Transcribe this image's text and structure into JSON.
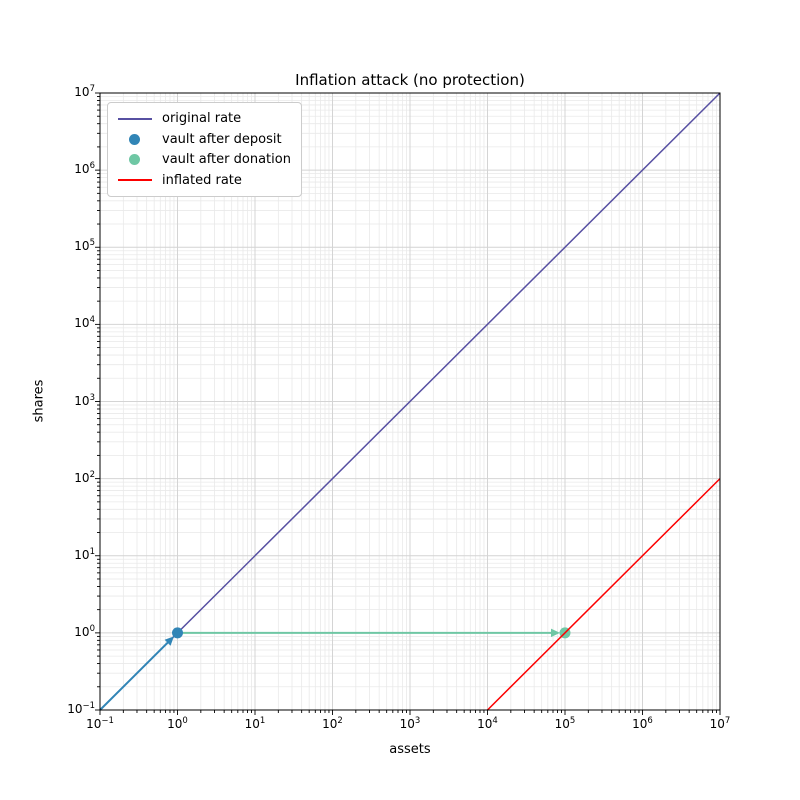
{
  "chart_data": {
    "type": "line",
    "title": "Inflation attack (no protection)",
    "xlabel": "assets",
    "ylabel": "shares",
    "xscale": "log",
    "yscale": "log",
    "xlim": [
      0.1,
      10000000
    ],
    "ylim": [
      0.1,
      10000000
    ],
    "x_tick_exponents": [
      -1,
      0,
      1,
      2,
      3,
      4,
      5,
      6,
      7
    ],
    "y_tick_exponents": [
      -1,
      0,
      1,
      2,
      3,
      4,
      5,
      6,
      7
    ],
    "grid": true,
    "grid_major_color": "#d4d4d4",
    "grid_minor_color": "#e9e9e9",
    "legend_position": "upper-left",
    "series": [
      {
        "name": "original rate",
        "type": "line",
        "color": "#5750A2",
        "x": [
          0.1,
          10000000
        ],
        "y": [
          0.1,
          10000000
        ],
        "width": 1.5,
        "zorder": 1
      },
      {
        "name": "vault after deposit",
        "type": "scatter",
        "color": "#3185B6",
        "x": [
          1
        ],
        "y": [
          1
        ],
        "size": 5.5,
        "zorder": 3
      },
      {
        "name": "vault after donation",
        "type": "scatter",
        "color": "#6FC7A4",
        "x": [
          100000
        ],
        "y": [
          1
        ],
        "size": 5.5,
        "zorder": 3
      },
      {
        "name": "inflated rate",
        "type": "line",
        "color": "#FC0000",
        "x": [
          10000,
          10000000
        ],
        "y": [
          0.1,
          100
        ],
        "width": 1.5,
        "zorder": 4
      }
    ],
    "annotations": [
      {
        "type": "arrow",
        "name": "deposit-arrow",
        "color": "#3185B6",
        "from": [
          0.1,
          0.1
        ],
        "to": [
          1,
          1
        ],
        "zorder": 2
      },
      {
        "type": "arrow",
        "name": "donation-arrow",
        "color": "#6FC7A4",
        "from": [
          1,
          1
        ],
        "to": [
          100000,
          1
        ],
        "zorder": 2
      }
    ]
  }
}
